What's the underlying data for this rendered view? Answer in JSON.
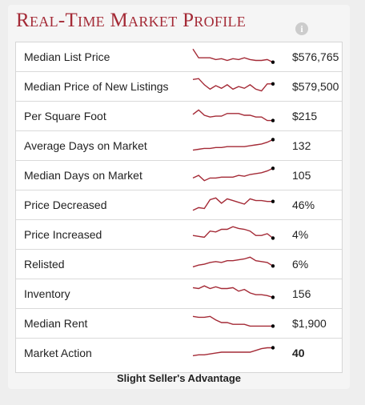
{
  "widget": {
    "title": "Real-Time Market Profile",
    "info_icon_glyph": "i",
    "colors": {
      "title": "#a42a36",
      "spark_line": "#a42a36",
      "spark_dot": "#000000"
    }
  },
  "rows": [
    {
      "label": "Median List Price",
      "value": "$576,765",
      "bold": false,
      "trend": [
        2,
        12,
        12,
        12,
        14,
        13,
        15,
        13,
        14,
        12,
        14,
        15,
        15,
        14,
        17
      ]
    },
    {
      "label": "Median Price of New Listings",
      "value": "$579,500",
      "bold": false,
      "trend": [
        3,
        2,
        9,
        14,
        10,
        13,
        9,
        14,
        11,
        13,
        9,
        14,
        16,
        8,
        8
      ]
    },
    {
      "label": "Per Square Foot",
      "value": "$215",
      "bold": false,
      "trend": [
        9,
        4,
        10,
        12,
        11,
        11,
        8,
        8,
        8,
        10,
        10,
        12,
        12,
        16,
        16
      ]
    },
    {
      "label": "Average Days on Market",
      "value": "132",
      "bold": false,
      "trend": [
        16,
        15,
        14,
        14,
        13,
        13,
        12,
        12,
        12,
        12,
        11,
        10,
        9,
        7,
        4
      ]
    },
    {
      "label": "Median Days on Market",
      "value": "105",
      "bold": false,
      "trend": [
        14,
        11,
        17,
        14,
        14,
        13,
        13,
        13,
        11,
        12,
        10,
        9,
        8,
        6,
        3
      ]
    },
    {
      "label": "Price Decreased",
      "value": "46%",
      "bold": false,
      "trend": [
        17,
        14,
        15,
        5,
        3,
        9,
        4,
        6,
        8,
        10,
        4,
        6,
        6,
        7,
        7
      ]
    },
    {
      "label": "Price Increased",
      "value": "4%",
      "bold": false,
      "trend": [
        12,
        13,
        14,
        7,
        8,
        5,
        5,
        2,
        4,
        5,
        7,
        12,
        12,
        10,
        15
      ]
    },
    {
      "label": "Relisted",
      "value": "6%",
      "bold": false,
      "trend": [
        14,
        12,
        11,
        9,
        8,
        9,
        7,
        7,
        6,
        5,
        3,
        7,
        8,
        9,
        13
      ]
    },
    {
      "label": "Inventory",
      "value": "156",
      "bold": false,
      "trend": [
        4,
        5,
        2,
        5,
        3,
        5,
        5,
        4,
        8,
        6,
        10,
        12,
        12,
        13,
        15
      ]
    },
    {
      "label": "Median Rent",
      "value": "$1,900",
      "bold": false,
      "trend": [
        3,
        4,
        4,
        3,
        7,
        10,
        10,
        12,
        12,
        12,
        14,
        14,
        14,
        14,
        14
      ]
    },
    {
      "label": "Market Action",
      "value": "40",
      "bold": true,
      "trend": [
        14,
        13,
        13,
        12,
        11,
        10,
        10,
        10,
        10,
        10,
        10,
        8,
        6,
        5,
        5
      ]
    }
  ],
  "footer": {
    "text": "Slight Seller's Advantage"
  }
}
